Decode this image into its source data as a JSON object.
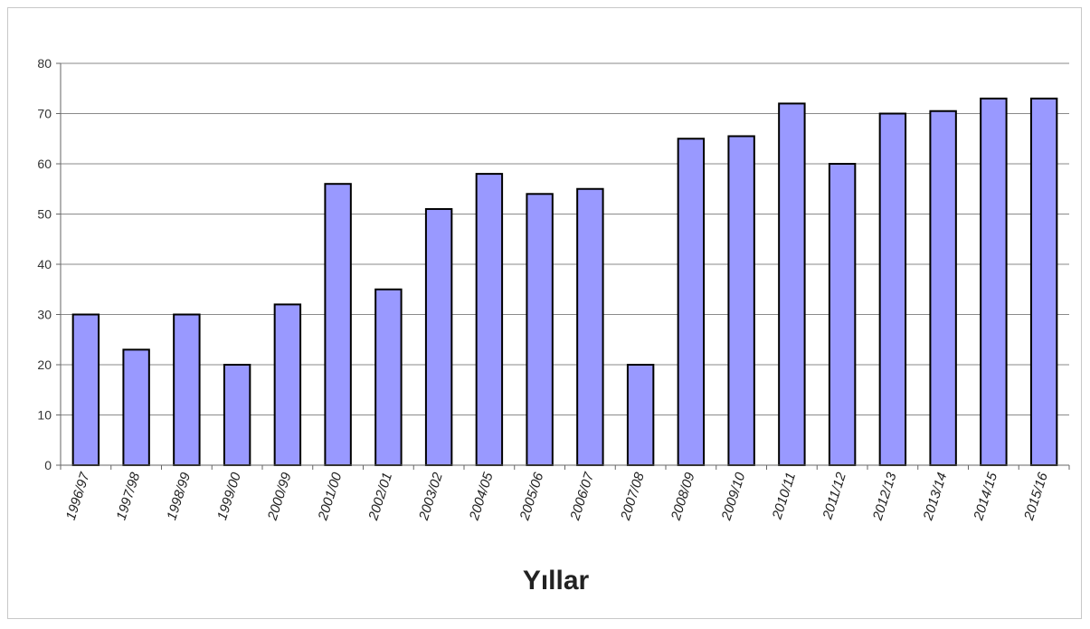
{
  "chart_data": {
    "type": "bar",
    "title": "",
    "xlabel": "Yıllar",
    "ylabel": "",
    "ylim": [
      0,
      80
    ],
    "yticks": [
      0,
      10,
      20,
      30,
      40,
      50,
      60,
      70,
      80
    ],
    "grid": true,
    "legend": "none",
    "categories": [
      "1996/97",
      "1997/98",
      "1998/99",
      "1999/00",
      "2000/99",
      "2001/00",
      "2002/01",
      "2003/02",
      "2004/05",
      "2005/06",
      "2006/07",
      "2007/08",
      "2008/09",
      "2009/10",
      "2010/11",
      "2011/12",
      "2012/13",
      "2013/14",
      "2014/15",
      "2015/16"
    ],
    "values": [
      30,
      23,
      30,
      20,
      32,
      56,
      35,
      51,
      58,
      54,
      55,
      20,
      65,
      65.5,
      72,
      60,
      70,
      70.5,
      73,
      73
    ],
    "colors": {
      "bar_fill": "#9999ff",
      "bar_stroke": "#000000",
      "grid": "#8a8a8a",
      "axis": "#666666"
    }
  }
}
